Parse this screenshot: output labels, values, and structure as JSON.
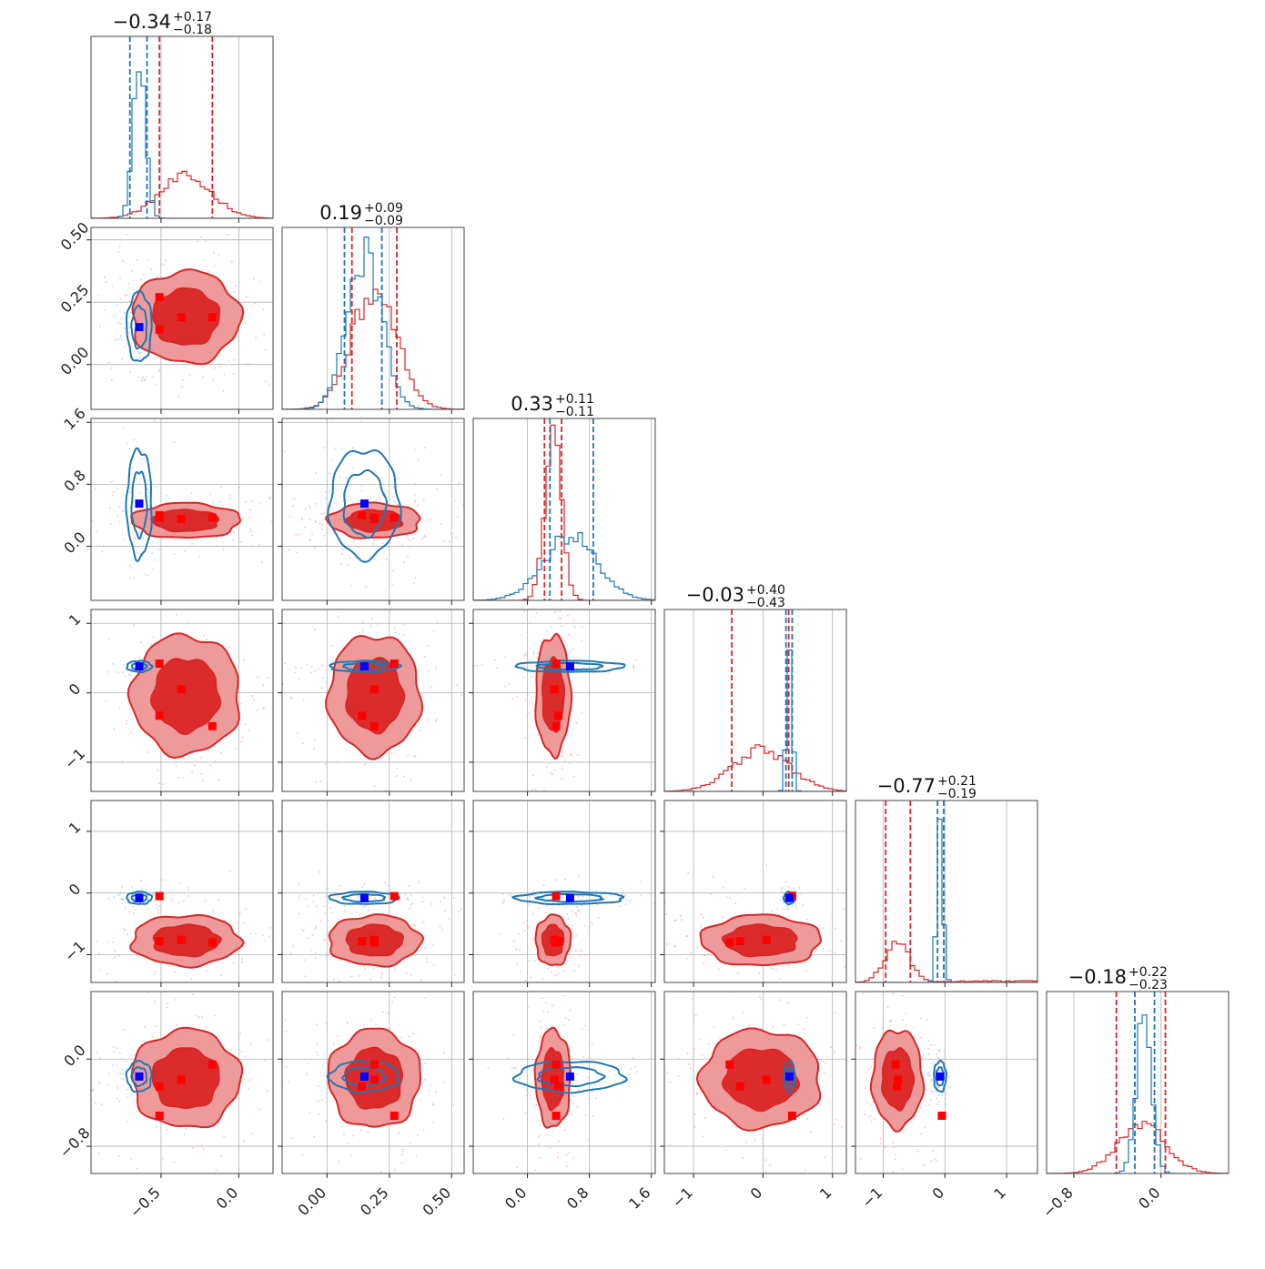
{
  "chart_data": {
    "type": "scatter",
    "subtype": "corner-plot",
    "grid": true,
    "n_params": 6,
    "colors": {
      "red": "#d62728",
      "blue": "#1f77b4",
      "marker_red": "#ff0000",
      "marker_blue": "#0000ff"
    },
    "params": [
      {
        "title_value": "−0.34",
        "title_plus": "+0.17",
        "title_minus": "−0.18",
        "range": [
          -0.95,
          0.22
        ],
        "ticks": [
          -0.5,
          0.0
        ],
        "tick_labels": [
          "−0.5",
          "0.0"
        ]
      },
      {
        "title_value": "0.19",
        "title_plus": "+0.09",
        "title_minus": "−0.09",
        "range": [
          -0.18,
          0.55
        ],
        "ticks": [
          0.0,
          0.25,
          0.5
        ],
        "tick_labels": [
          "0.00",
          "0.25",
          "0.50"
        ]
      },
      {
        "title_value": "0.33",
        "title_plus": "+0.11",
        "title_minus": "−0.11",
        "range": [
          -0.7,
          1.65
        ],
        "ticks": [
          0.0,
          0.8,
          1.6
        ],
        "tick_labels": [
          "0.0",
          "0.8",
          "1.6"
        ]
      },
      {
        "title_value": "−0.03",
        "title_plus": "+0.40",
        "title_minus": "−0.43",
        "range": [
          -1.42,
          1.2
        ],
        "ticks": [
          -1,
          0,
          1
        ],
        "tick_labels": [
          "−1",
          "0",
          "1"
        ]
      },
      {
        "title_value": "−0.77",
        "title_plus": "+0.21",
        "title_minus": "−0.19",
        "range": [
          -1.45,
          1.5
        ],
        "ticks": [
          -1,
          0,
          1
        ],
        "tick_labels": [
          "−1",
          "0",
          "1"
        ]
      },
      {
        "title_value": "−0.18",
        "title_plus": "+0.22",
        "title_minus": "−0.23",
        "range": [
          -1.05,
          0.62
        ],
        "ticks": [
          -0.8,
          0.0
        ],
        "tick_labels": [
          "−0.8",
          "0.0"
        ]
      }
    ],
    "red_posterior": {
      "means": [
        -0.34,
        0.19,
        0.33,
        -0.03,
        -0.77,
        -0.18
      ],
      "sds": [
        0.17,
        0.09,
        0.11,
        0.42,
        0.2,
        0.22
      ],
      "quantile_lines": [
        [
          -0.51,
          -0.17
        ],
        [
          0.1,
          0.28
        ],
        [
          0.22,
          0.44
        ],
        [
          -0.45,
          0.37
        ],
        [
          -0.96,
          -0.56
        ],
        [
          -0.41,
          0.04
        ]
      ]
    },
    "blue_posterior": {
      "means": [
        -0.64,
        0.15,
        0.55,
        0.38,
        -0.08,
        -0.16
      ],
      "sds": [
        0.04,
        0.07,
        0.35,
        0.04,
        0.05,
        0.07
      ],
      "quantile_lines": [
        [
          -0.7,
          -0.59
        ],
        [
          0.07,
          0.22
        ],
        [
          0.29,
          0.85
        ],
        [
          0.33,
          0.42
        ],
        [
          -0.12,
          -0.02
        ],
        [
          -0.24,
          -0.06
        ]
      ]
    },
    "red_markers": [
      [
        -0.51,
        0.27,
        0.37,
        0.42,
        -0.05,
        -0.52
      ],
      [
        -0.37,
        0.19,
        0.35,
        0.05,
        -0.76,
        -0.19
      ],
      [
        -0.17,
        0.19,
        0.37,
        -0.48,
        -0.8,
        -0.05
      ],
      [
        -0.51,
        0.14,
        0.4,
        -0.33,
        -0.78,
        -0.25
      ]
    ],
    "blue_marker": [
      -0.64,
      0.15,
      0.55,
      0.38,
      -0.08,
      -0.16
    ]
  }
}
